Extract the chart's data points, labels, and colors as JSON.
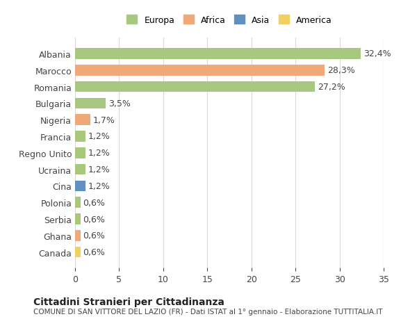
{
  "countries": [
    "Albania",
    "Marocco",
    "Romania",
    "Bulgaria",
    "Nigeria",
    "Francia",
    "Regno Unito",
    "Ucraina",
    "Cina",
    "Polonia",
    "Serbia",
    "Ghana",
    "Canada"
  ],
  "values": [
    32.4,
    28.3,
    27.2,
    3.5,
    1.7,
    1.2,
    1.2,
    1.2,
    1.2,
    0.6,
    0.6,
    0.6,
    0.6
  ],
  "labels": [
    "32,4%",
    "28,3%",
    "27,2%",
    "3,5%",
    "1,7%",
    "1,2%",
    "1,2%",
    "1,2%",
    "1,2%",
    "0,6%",
    "0,6%",
    "0,6%",
    "0,6%"
  ],
  "continents": [
    "Europa",
    "Africa",
    "Europa",
    "Europa",
    "Africa",
    "Europa",
    "Europa",
    "Europa",
    "Asia",
    "Europa",
    "Europa",
    "Africa",
    "America"
  ],
  "colors": {
    "Europa": "#a8c880",
    "Africa": "#f0a878",
    "Asia": "#6090c0",
    "America": "#f0d060"
  },
  "legend_order": [
    "Europa",
    "Africa",
    "Asia",
    "America"
  ],
  "xlim": [
    0,
    35
  ],
  "xticks": [
    0,
    5,
    10,
    15,
    20,
    25,
    30,
    35
  ],
  "title": "Cittadini Stranieri per Cittadinanza",
  "subtitle": "COMUNE DI SAN VITTORE DEL LAZIO (FR) - Dati ISTAT al 1° gennaio - Elaborazione TUTTITALIA.IT",
  "background_color": "#ffffff",
  "grid_color": "#d8d8d8",
  "bar_height": 0.65,
  "label_fontsize": 9,
  "tick_fontsize": 9
}
